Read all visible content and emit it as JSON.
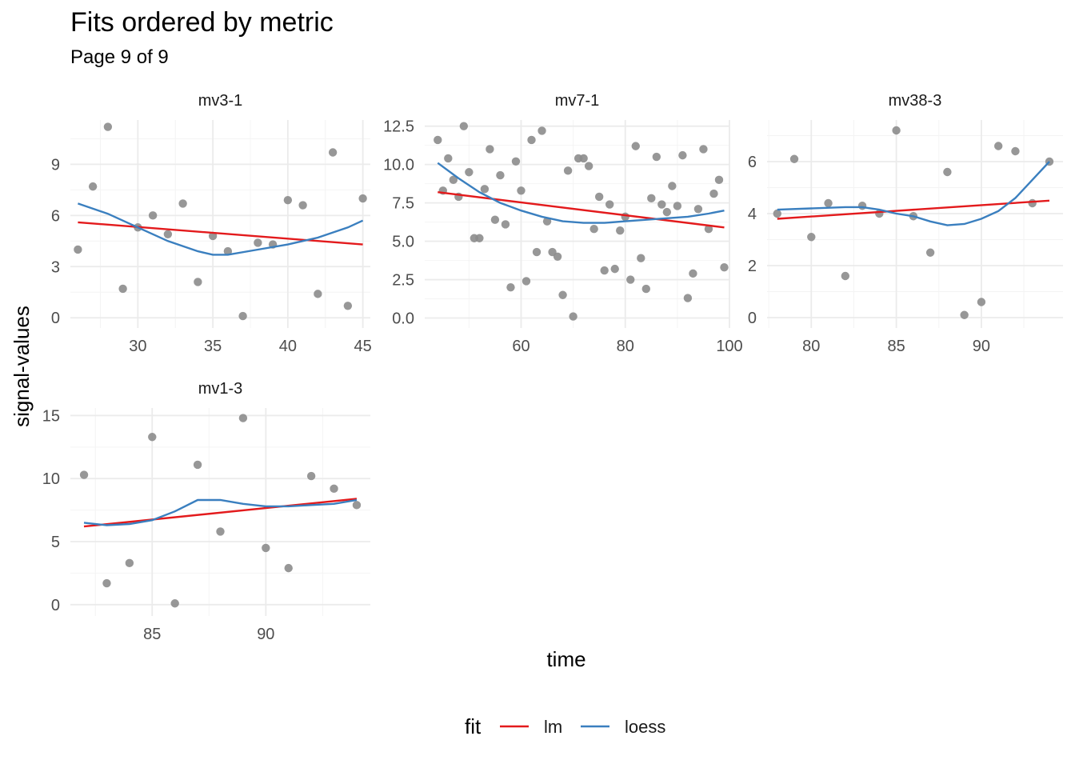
{
  "title": "Fits ordered by metric",
  "subtitle": "Page 9 of 9",
  "x_axis_title": "time",
  "y_axis_title": "signal-values",
  "legend": {
    "title": "fit",
    "items": [
      {
        "label": "lm",
        "color": "#e31a1c"
      },
      {
        "label": "loess",
        "color": "#3a7fbf"
      }
    ]
  },
  "colors": {
    "points": "#8c8c8c",
    "lm": "#e31a1c",
    "loess": "#3a7fbf"
  },
  "chart_data": [
    {
      "type": "scatter",
      "panel": "mv3-1",
      "xlim": [
        25.5,
        45.5
      ],
      "ylim": [
        -0.6,
        11.6
      ],
      "x_ticks": [
        30,
        35,
        40,
        45
      ],
      "x_tick_labels": [
        "30",
        "35",
        "40",
        "45"
      ],
      "y_ticks": [
        0,
        3,
        6,
        9
      ],
      "y_tick_labels": [
        "0",
        "3",
        "6",
        "9"
      ],
      "points": [
        [
          26,
          4.0
        ],
        [
          27,
          7.7
        ],
        [
          28,
          11.2
        ],
        [
          29,
          1.7
        ],
        [
          30,
          5.3
        ],
        [
          31,
          6.0
        ],
        [
          32,
          4.9
        ],
        [
          33,
          6.7
        ],
        [
          34,
          2.1
        ],
        [
          35,
          4.8
        ],
        [
          36,
          3.9
        ],
        [
          37,
          0.1
        ],
        [
          38,
          4.4
        ],
        [
          39,
          4.3
        ],
        [
          40,
          6.9
        ],
        [
          41,
          6.6
        ],
        [
          42,
          1.4
        ],
        [
          43,
          9.7
        ],
        [
          44,
          0.7
        ],
        [
          45,
          7.0
        ]
      ],
      "series": [
        {
          "name": "lm",
          "x": [
            26,
            45
          ],
          "y": [
            5.6,
            4.3
          ]
        },
        {
          "name": "loess",
          "x": [
            26,
            28,
            30,
            32,
            34,
            35,
            36,
            38,
            40,
            42,
            44,
            45
          ],
          "y": [
            6.7,
            6.1,
            5.3,
            4.5,
            3.9,
            3.7,
            3.7,
            4.0,
            4.3,
            4.7,
            5.3,
            5.7
          ]
        }
      ]
    },
    {
      "type": "scatter",
      "panel": "mv7-1",
      "xlim": [
        41.5,
        100
      ],
      "ylim": [
        -0.65,
        12.9
      ],
      "x_ticks": [
        60,
        80,
        100
      ],
      "x_tick_labels": [
        "60",
        "80",
        "100"
      ],
      "y_ticks": [
        0,
        2.5,
        5,
        7.5,
        10,
        12.5
      ],
      "y_tick_labels": [
        "0.0",
        "2.5",
        "5.0",
        "7.5",
        "10.0",
        "12.5"
      ],
      "points": [
        [
          44,
          11.6
        ],
        [
          45,
          8.3
        ],
        [
          46,
          10.4
        ],
        [
          47,
          9.0
        ],
        [
          48,
          7.9
        ],
        [
          49,
          12.5
        ],
        [
          50,
          9.5
        ],
        [
          51,
          5.2
        ],
        [
          52,
          5.2
        ],
        [
          53,
          8.4
        ],
        [
          54,
          11.0
        ],
        [
          55,
          6.4
        ],
        [
          56,
          9.3
        ],
        [
          57,
          6.1
        ],
        [
          58,
          2.0
        ],
        [
          59,
          10.2
        ],
        [
          60,
          8.3
        ],
        [
          61,
          2.4
        ],
        [
          62,
          11.6
        ],
        [
          63,
          4.3
        ],
        [
          64,
          12.2
        ],
        [
          65,
          6.3
        ],
        [
          66,
          4.3
        ],
        [
          67,
          4.0
        ],
        [
          68,
          1.5
        ],
        [
          69,
          9.6
        ],
        [
          70,
          0.1
        ],
        [
          71,
          10.4
        ],
        [
          72,
          10.4
        ],
        [
          73,
          9.9
        ],
        [
          74,
          5.8
        ],
        [
          75,
          7.9
        ],
        [
          76,
          3.1
        ],
        [
          77,
          7.4
        ],
        [
          78,
          3.2
        ],
        [
          79,
          5.7
        ],
        [
          80,
          6.6
        ],
        [
          81,
          2.5
        ],
        [
          82,
          11.2
        ],
        [
          83,
          3.9
        ],
        [
          84,
          1.9
        ],
        [
          85,
          7.8
        ],
        [
          86,
          10.5
        ],
        [
          87,
          7.4
        ],
        [
          88,
          6.9
        ],
        [
          89,
          8.6
        ],
        [
          90,
          7.3
        ],
        [
          91,
          10.6
        ],
        [
          92,
          1.3
        ],
        [
          93,
          2.9
        ],
        [
          94,
          7.1
        ],
        [
          95,
          11.0
        ],
        [
          96,
          5.8
        ],
        [
          97,
          8.1
        ],
        [
          98,
          9.0
        ],
        [
          99,
          3.3
        ]
      ],
      "series": [
        {
          "name": "lm",
          "x": [
            44,
            99
          ],
          "y": [
            8.2,
            5.9
          ]
        },
        {
          "name": "loess",
          "x": [
            44,
            48,
            52,
            56,
            60,
            64,
            68,
            72,
            76,
            80,
            84,
            88,
            92,
            96,
            99
          ],
          "y": [
            10.1,
            9.1,
            8.2,
            7.5,
            7.0,
            6.6,
            6.3,
            6.2,
            6.2,
            6.3,
            6.4,
            6.5,
            6.6,
            6.8,
            7.0
          ]
        }
      ]
    },
    {
      "type": "scatter",
      "panel": "mv38-3",
      "xlim": [
        77.4,
        94.8
      ],
      "ylim": [
        -0.4,
        7.6
      ],
      "x_ticks": [
        80,
        85,
        90
      ],
      "x_tick_labels": [
        "80",
        "85",
        "90"
      ],
      "y_ticks": [
        0,
        2,
        4,
        6
      ],
      "y_tick_labels": [
        "0",
        "2",
        "4",
        "6"
      ],
      "points": [
        [
          78,
          4.0
        ],
        [
          79,
          6.1
        ],
        [
          80,
          3.1
        ],
        [
          81,
          4.4
        ],
        [
          82,
          1.6
        ],
        [
          83,
          4.3
        ],
        [
          84,
          4.0
        ],
        [
          85,
          7.2
        ],
        [
          86,
          3.9
        ],
        [
          87,
          2.5
        ],
        [
          88,
          5.6
        ],
        [
          89,
          0.1
        ],
        [
          90,
          0.6
        ],
        [
          91,
          6.6
        ],
        [
          92,
          6.4
        ],
        [
          93,
          4.4
        ],
        [
          94,
          6.0
        ]
      ],
      "series": [
        {
          "name": "lm",
          "x": [
            78,
            94
          ],
          "y": [
            3.8,
            4.5
          ]
        },
        {
          "name": "loess",
          "x": [
            78,
            80,
            82,
            83,
            84,
            85,
            86,
            87,
            88,
            89,
            90,
            91,
            92,
            93,
            94
          ],
          "y": [
            4.15,
            4.2,
            4.25,
            4.25,
            4.15,
            4.0,
            3.9,
            3.7,
            3.55,
            3.6,
            3.8,
            4.1,
            4.6,
            5.3,
            6.0
          ]
        }
      ]
    },
    {
      "type": "scatter",
      "panel": "mv1-3",
      "xlim": [
        81.4,
        94.6
      ],
      "ylim": [
        -0.9,
        15.6
      ],
      "x_ticks": [
        85,
        90
      ],
      "x_tick_labels": [
        "85",
        "90"
      ],
      "y_ticks": [
        0,
        5,
        10,
        15
      ],
      "y_tick_labels": [
        "0",
        "5",
        "10",
        "15"
      ],
      "points": [
        [
          82,
          10.3
        ],
        [
          83,
          1.7
        ],
        [
          84,
          3.3
        ],
        [
          85,
          13.3
        ],
        [
          86,
          0.1
        ],
        [
          87,
          11.1
        ],
        [
          88,
          5.8
        ],
        [
          89,
          14.8
        ],
        [
          90,
          4.5
        ],
        [
          91,
          2.9
        ],
        [
          92,
          10.2
        ],
        [
          93,
          9.2
        ],
        [
          94,
          7.9
        ]
      ],
      "series": [
        {
          "name": "lm",
          "x": [
            82,
            94
          ],
          "y": [
            6.2,
            8.4
          ]
        },
        {
          "name": "loess",
          "x": [
            82,
            83,
            84,
            85,
            86,
            87,
            88,
            89,
            90,
            91,
            92,
            93,
            94
          ],
          "y": [
            6.5,
            6.3,
            6.4,
            6.7,
            7.4,
            8.3,
            8.3,
            8.0,
            7.8,
            7.8,
            7.9,
            8.0,
            8.3
          ]
        }
      ]
    }
  ]
}
